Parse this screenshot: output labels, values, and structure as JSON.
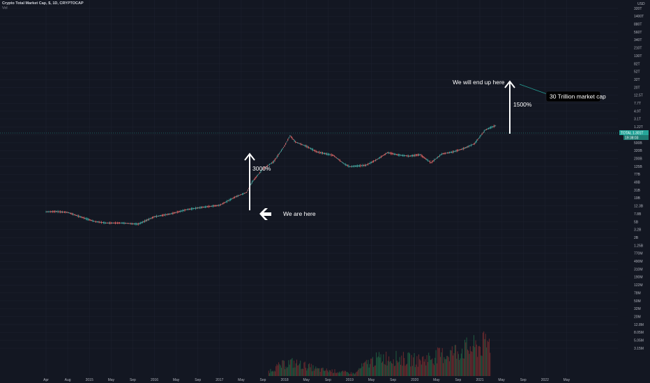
{
  "header": {
    "title": "Crypto Total Market Cap, $, 1D, CRYPTOCAP",
    "volume_label": "Vol"
  },
  "colors": {
    "background": "#131722",
    "grid": "#1e2230",
    "up": "#26a69a",
    "down": "#ef5350",
    "text": "#b2b5be",
    "annotation": "#ffffff",
    "price_line": "#26a69a"
  },
  "y_axis": {
    "currency": "USD",
    "scale": "log",
    "ticks": [
      "320T",
      "1400T",
      "880T",
      "560T",
      "340T",
      "210T",
      "130T",
      "82T",
      "52T",
      "32T",
      "20T",
      "12.5T",
      "7.7T",
      "4.9T",
      "3.1T",
      "1.22T",
      "780B",
      "500B",
      "320B",
      "200B",
      "125B",
      "77B",
      "49B",
      "31B",
      "19B",
      "12.3B",
      "7.8B",
      "5B",
      "3.2B",
      "2B",
      "1.25B",
      "770M",
      "490M",
      "310M",
      "190M",
      "122M",
      "78M",
      "50M",
      "32M",
      "20M",
      "12.8M",
      "8.05M",
      "5.05M",
      "3.15M"
    ],
    "tags": [
      "TOTAL 1.301T",
      "19:38:03"
    ]
  },
  "x_axis": {
    "ticks": [
      "Apr",
      "Aug",
      "2015",
      "May",
      "Sep",
      "2016",
      "May",
      "Sep",
      "2017",
      "May",
      "Sep",
      "2018",
      "May",
      "Sep",
      "2019",
      "May",
      "Sep",
      "2020",
      "May",
      "Sep",
      "2021",
      "May",
      "Sep",
      "2022",
      "May"
    ]
  },
  "annotations": {
    "pct_1": "3000%",
    "pct_2": "1500%",
    "we_are_here": "We are here",
    "end_up_here": "We will end up here",
    "callout": "30 Trillion market cap"
  },
  "chart_data": {
    "type": "line",
    "title": "Crypto Total Market Cap, $, 1D, CRYPTOCAP",
    "y_scale": "log",
    "x": [
      "2014-04",
      "2014-06",
      "2014-08",
      "2014-10",
      "2015-01",
      "2015-03",
      "2015-06",
      "2015-09",
      "2015-12",
      "2016-03",
      "2016-06",
      "2016-09",
      "2016-12",
      "2017-03",
      "2017-05",
      "2017-06",
      "2017-08",
      "2017-10",
      "2017-12",
      "2018-01",
      "2018-02",
      "2018-04",
      "2018-06",
      "2018-09",
      "2018-11",
      "2018-12",
      "2019-03",
      "2019-05",
      "2019-07",
      "2019-09",
      "2019-11",
      "2020-01",
      "2020-03",
      "2020-05",
      "2020-07",
      "2020-09",
      "2020-11",
      "2021-01",
      "2021-02",
      "2021-03"
    ],
    "series": [
      {
        "values_usd": [
          8800000000.0,
          8900000000.0,
          8500000000.0,
          6800000000.0,
          5000000000.0,
          4600000000.0,
          4600000000.0,
          4300000000.0,
          6600000000.0,
          7800000000.0,
          10000000000.0,
          11500000000.0,
          12800000000.0,
          21000000000.0,
          27000000000.0,
          49000000000.0,
          105000000000.0,
          160000000000.0,
          400000000000.0,
          720000000000.0,
          500000000000.0,
          390000000000.0,
          280000000000.0,
          230000000000.0,
          140000000000.0,
          120000000000.0,
          130000000000.0,
          180000000000.0,
          270000000000.0,
          235000000000.0,
          220000000000.0,
          240000000000.0,
          150000000000.0,
          250000000000.0,
          280000000000.0,
          340000000000.0,
          450000000000.0,
          1000000000000.0,
          1150000000000.0,
          1300000000000.0
        ]
      }
    ],
    "volume": {
      "x": [
        "2017-09",
        "2018-01",
        "2018-06",
        "2019-01",
        "2019-06",
        "2020-01",
        "2020-06",
        "2020-12",
        "2021-02"
      ],
      "values_usd": [
        5000000.0,
        12000000.0,
        6000000.0,
        4000000.0,
        20000000.0,
        15000000.0,
        28000000.0,
        60000000.0,
        90000000.0
      ]
    }
  }
}
